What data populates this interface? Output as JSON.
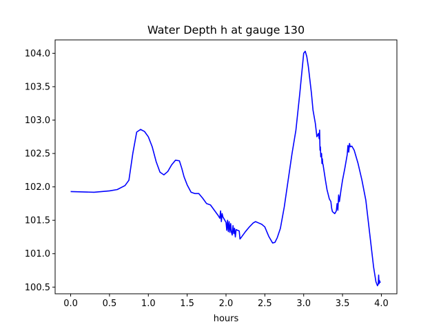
{
  "chart_data": {
    "type": "line",
    "title": "Water Depth h at gauge 130",
    "xlabel": "hours",
    "ylabel": "",
    "xlim": [
      -0.2,
      4.2
    ],
    "ylim": [
      100.4,
      104.2
    ],
    "x_ticks": [
      0.0,
      0.5,
      1.0,
      1.5,
      2.0,
      2.5,
      3.0,
      3.5,
      4.0
    ],
    "x_tick_labels": [
      "0.0",
      "0.5",
      "1.0",
      "1.5",
      "2.0",
      "2.5",
      "3.0",
      "3.5",
      "4.0"
    ],
    "y_ticks": [
      100.5,
      101.0,
      101.5,
      102.0,
      102.5,
      103.0,
      103.5,
      104.0
    ],
    "y_tick_labels": [
      "100.5",
      "101.0",
      "101.5",
      "102.0",
      "102.5",
      "103.0",
      "103.5",
      "104.0"
    ],
    "grid": false,
    "series": [
      {
        "color": "#0000ff",
        "x": [
          0.0,
          0.3,
          0.5,
          0.6,
          0.7,
          0.75,
          0.8,
          0.85,
          0.9,
          0.95,
          1.0,
          1.05,
          1.1,
          1.15,
          1.2,
          1.25,
          1.3,
          1.35,
          1.4,
          1.43,
          1.46,
          1.5,
          1.55,
          1.6,
          1.65,
          1.7,
          1.75,
          1.8,
          1.85,
          1.9,
          1.92,
          1.93,
          1.94,
          1.95,
          1.96,
          2.0,
          2.01,
          2.02,
          2.03,
          2.04,
          2.05,
          2.06,
          2.07,
          2.08,
          2.09,
          2.1,
          2.11,
          2.12,
          2.13,
          2.15,
          2.17,
          2.18,
          2.2,
          2.25,
          2.3,
          2.35,
          2.38,
          2.42,
          2.46,
          2.5,
          2.55,
          2.6,
          2.63,
          2.66,
          2.7,
          2.75,
          2.8,
          2.85,
          2.9,
          2.95,
          3.0,
          3.02,
          3.04,
          3.06,
          3.08,
          3.1,
          3.12,
          3.15,
          3.17,
          3.19,
          3.2,
          3.205,
          3.21,
          3.215,
          3.22,
          3.23,
          3.235,
          3.24,
          3.245,
          3.25,
          3.28,
          3.3,
          3.33,
          3.35,
          3.36,
          3.37,
          3.4,
          3.42,
          3.43,
          3.44,
          3.45,
          3.46,
          3.48,
          3.5,
          3.53,
          3.56,
          3.57,
          3.58,
          3.59,
          3.6,
          3.62,
          3.65,
          3.7,
          3.75,
          3.8,
          3.85,
          3.9,
          3.93,
          3.95,
          3.96,
          3.965,
          3.97,
          3.975,
          3.98,
          3.99
        ],
        "y": [
          101.93,
          101.92,
          101.94,
          101.96,
          102.02,
          102.1,
          102.5,
          102.82,
          102.86,
          102.83,
          102.75,
          102.6,
          102.38,
          102.22,
          102.18,
          102.23,
          102.33,
          102.4,
          102.39,
          102.28,
          102.15,
          102.03,
          101.92,
          101.9,
          101.9,
          101.83,
          101.75,
          101.73,
          101.65,
          101.57,
          101.53,
          101.64,
          101.48,
          101.6,
          101.55,
          101.47,
          101.35,
          101.5,
          101.33,
          101.48,
          101.32,
          101.45,
          101.32,
          101.28,
          101.42,
          101.3,
          101.38,
          101.25,
          101.36,
          101.35,
          101.34,
          101.22,
          101.25,
          101.33,
          101.4,
          101.46,
          101.48,
          101.46,
          101.44,
          101.4,
          101.26,
          101.16,
          101.17,
          101.24,
          101.38,
          101.7,
          102.1,
          102.5,
          102.85,
          103.4,
          104.0,
          104.03,
          103.95,
          103.8,
          103.6,
          103.4,
          103.15,
          102.95,
          102.75,
          102.8,
          102.72,
          102.85,
          102.55,
          102.6,
          102.45,
          102.5,
          102.35,
          102.42,
          102.35,
          102.33,
          102.1,
          101.96,
          101.82,
          101.78,
          101.68,
          101.63,
          101.6,
          101.64,
          101.75,
          101.65,
          101.88,
          101.78,
          101.95,
          102.1,
          102.28,
          102.48,
          102.62,
          102.52,
          102.65,
          102.6,
          102.61,
          102.55,
          102.35,
          102.1,
          101.8,
          101.3,
          100.8,
          100.58,
          100.52,
          100.55,
          100.68,
          100.55,
          100.6,
          100.57,
          100.58
        ]
      }
    ]
  }
}
